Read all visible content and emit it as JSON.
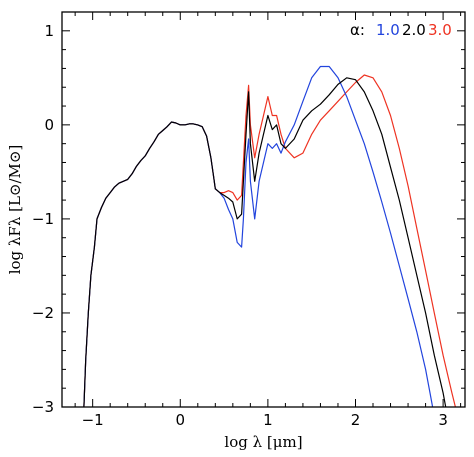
{
  "chart_data": {
    "type": "line",
    "xlabel": "log λ [μm]",
    "ylabel": "log λFλ [L⊙/M⊙]",
    "xlim": [
      -1.35,
      3.25
    ],
    "ylim": [
      -3,
      1.2
    ],
    "x_ticks": [
      -1,
      0,
      1,
      2,
      3
    ],
    "x_tick_labels": [
      "−1",
      "0",
      "1",
      "2",
      "3"
    ],
    "y_ticks": [
      -3,
      -2,
      -1,
      0,
      1
    ],
    "y_tick_labels": [
      "−3",
      "−2",
      "−1",
      "0",
      "1"
    ],
    "legend_title": "α:",
    "legend_position": "top-right",
    "series": [
      {
        "name": "1.0",
        "color": "#2244dd",
        "points": [
          [
            -1.1,
            -3.0
          ],
          [
            -1.08,
            -2.5
          ],
          [
            -1.05,
            -2.0
          ],
          [
            -1.02,
            -1.6
          ],
          [
            -0.98,
            -1.3
          ],
          [
            -0.95,
            -1.0
          ],
          [
            -0.9,
            -0.88
          ],
          [
            -0.85,
            -0.78
          ],
          [
            -0.8,
            -0.72
          ],
          [
            -0.75,
            -0.66
          ],
          [
            -0.7,
            -0.62
          ],
          [
            -0.6,
            -0.58
          ],
          [
            -0.55,
            -0.52
          ],
          [
            -0.5,
            -0.44
          ],
          [
            -0.45,
            -0.38
          ],
          [
            -0.4,
            -0.33
          ],
          [
            -0.35,
            -0.25
          ],
          [
            -0.3,
            -0.18
          ],
          [
            -0.25,
            -0.1
          ],
          [
            -0.2,
            -0.06
          ],
          [
            -0.15,
            -0.02
          ],
          [
            -0.1,
            0.03
          ],
          [
            -0.05,
            0.02
          ],
          [
            0.0,
            0.0
          ],
          [
            0.05,
            0.0
          ],
          [
            0.1,
            0.01
          ],
          [
            0.15,
            0.01
          ],
          [
            0.2,
            0.0
          ],
          [
            0.25,
            -0.02
          ],
          [
            0.3,
            -0.12
          ],
          [
            0.35,
            -0.35
          ],
          [
            0.38,
            -0.55
          ],
          [
            0.4,
            -0.68
          ],
          [
            0.45,
            -0.72
          ],
          [
            0.5,
            -0.78
          ],
          [
            0.55,
            -0.9
          ],
          [
            0.6,
            -1.0
          ],
          [
            0.65,
            -1.25
          ],
          [
            0.7,
            -1.3
          ],
          [
            0.72,
            -1.0
          ],
          [
            0.75,
            -0.4
          ],
          [
            0.78,
            -0.15
          ],
          [
            0.8,
            -0.6
          ],
          [
            0.85,
            -1.0
          ],
          [
            0.9,
            -0.6
          ],
          [
            0.95,
            -0.4
          ],
          [
            1.0,
            -0.2
          ],
          [
            1.05,
            -0.25
          ],
          [
            1.1,
            -0.2
          ],
          [
            1.15,
            -0.3
          ],
          [
            1.2,
            -0.18
          ],
          [
            1.3,
            0.0
          ],
          [
            1.4,
            0.25
          ],
          [
            1.5,
            0.5
          ],
          [
            1.6,
            0.62
          ],
          [
            1.7,
            0.62
          ],
          [
            1.8,
            0.5
          ],
          [
            1.9,
            0.3
          ],
          [
            2.0,
            0.05
          ],
          [
            2.1,
            -0.2
          ],
          [
            2.2,
            -0.5
          ],
          [
            2.3,
            -0.82
          ],
          [
            2.4,
            -1.15
          ],
          [
            2.5,
            -1.5
          ],
          [
            2.6,
            -1.85
          ],
          [
            2.7,
            -2.2
          ],
          [
            2.8,
            -2.6
          ],
          [
            2.85,
            -2.85
          ],
          [
            2.88,
            -3.0
          ]
        ]
      },
      {
        "name": "2.0",
        "color": "#000000",
        "points": [
          [
            -1.1,
            -3.0
          ],
          [
            -1.08,
            -2.5
          ],
          [
            -1.05,
            -2.0
          ],
          [
            -1.02,
            -1.6
          ],
          [
            -0.98,
            -1.3
          ],
          [
            -0.95,
            -1.0
          ],
          [
            -0.9,
            -0.88
          ],
          [
            -0.85,
            -0.78
          ],
          [
            -0.8,
            -0.72
          ],
          [
            -0.75,
            -0.66
          ],
          [
            -0.7,
            -0.62
          ],
          [
            -0.6,
            -0.58
          ],
          [
            -0.55,
            -0.52
          ],
          [
            -0.5,
            -0.44
          ],
          [
            -0.45,
            -0.38
          ],
          [
            -0.4,
            -0.33
          ],
          [
            -0.35,
            -0.25
          ],
          [
            -0.3,
            -0.18
          ],
          [
            -0.25,
            -0.1
          ],
          [
            -0.2,
            -0.06
          ],
          [
            -0.15,
            -0.02
          ],
          [
            -0.1,
            0.03
          ],
          [
            -0.05,
            0.02
          ],
          [
            0.0,
            0.0
          ],
          [
            0.05,
            0.0
          ],
          [
            0.1,
            0.01
          ],
          [
            0.15,
            0.01
          ],
          [
            0.2,
            0.0
          ],
          [
            0.25,
            -0.02
          ],
          [
            0.3,
            -0.12
          ],
          [
            0.35,
            -0.35
          ],
          [
            0.38,
            -0.55
          ],
          [
            0.4,
            -0.68
          ],
          [
            0.45,
            -0.72
          ],
          [
            0.5,
            -0.75
          ],
          [
            0.55,
            -0.78
          ],
          [
            0.6,
            -0.82
          ],
          [
            0.65,
            -1.0
          ],
          [
            0.7,
            -0.95
          ],
          [
            0.72,
            -0.6
          ],
          [
            0.75,
            -0.1
          ],
          [
            0.78,
            0.35
          ],
          [
            0.8,
            -0.2
          ],
          [
            0.85,
            -0.6
          ],
          [
            0.9,
            -0.3
          ],
          [
            0.95,
            -0.1
          ],
          [
            1.0,
            0.1
          ],
          [
            1.05,
            -0.05
          ],
          [
            1.1,
            0.0
          ],
          [
            1.15,
            -0.2
          ],
          [
            1.2,
            -0.25
          ],
          [
            1.3,
            -0.15
          ],
          [
            1.4,
            0.05
          ],
          [
            1.5,
            0.15
          ],
          [
            1.6,
            0.22
          ],
          [
            1.7,
            0.32
          ],
          [
            1.8,
            0.43
          ],
          [
            1.9,
            0.5
          ],
          [
            2.0,
            0.48
          ],
          [
            2.1,
            0.35
          ],
          [
            2.2,
            0.15
          ],
          [
            2.3,
            -0.1
          ],
          [
            2.4,
            -0.45
          ],
          [
            2.5,
            -0.8
          ],
          [
            2.6,
            -1.2
          ],
          [
            2.7,
            -1.6
          ],
          [
            2.8,
            -2.0
          ],
          [
            2.9,
            -2.45
          ],
          [
            3.0,
            -2.85
          ],
          [
            3.03,
            -3.0
          ]
        ]
      },
      {
        "name": "3.0",
        "color": "#ee3322",
        "points": [
          [
            -1.1,
            -3.0
          ],
          [
            -1.08,
            -2.5
          ],
          [
            -1.05,
            -2.0
          ],
          [
            -1.02,
            -1.6
          ],
          [
            -0.98,
            -1.3
          ],
          [
            -0.95,
            -1.0
          ],
          [
            -0.9,
            -0.88
          ],
          [
            -0.85,
            -0.78
          ],
          [
            -0.8,
            -0.72
          ],
          [
            -0.75,
            -0.66
          ],
          [
            -0.7,
            -0.62
          ],
          [
            -0.6,
            -0.58
          ],
          [
            -0.55,
            -0.52
          ],
          [
            -0.5,
            -0.44
          ],
          [
            -0.45,
            -0.38
          ],
          [
            -0.4,
            -0.33
          ],
          [
            -0.35,
            -0.25
          ],
          [
            -0.3,
            -0.18
          ],
          [
            -0.25,
            -0.1
          ],
          [
            -0.2,
            -0.06
          ],
          [
            -0.15,
            -0.02
          ],
          [
            -0.1,
            0.03
          ],
          [
            -0.05,
            0.02
          ],
          [
            0.0,
            0.0
          ],
          [
            0.05,
            0.0
          ],
          [
            0.1,
            0.01
          ],
          [
            0.15,
            0.01
          ],
          [
            0.2,
            0.0
          ],
          [
            0.25,
            -0.02
          ],
          [
            0.3,
            -0.12
          ],
          [
            0.35,
            -0.35
          ],
          [
            0.38,
            -0.55
          ],
          [
            0.4,
            -0.68
          ],
          [
            0.45,
            -0.72
          ],
          [
            0.5,
            -0.72
          ],
          [
            0.55,
            -0.7
          ],
          [
            0.6,
            -0.72
          ],
          [
            0.65,
            -0.8
          ],
          [
            0.7,
            -0.75
          ],
          [
            0.72,
            -0.4
          ],
          [
            0.75,
            0.1
          ],
          [
            0.78,
            0.42
          ],
          [
            0.8,
            0.0
          ],
          [
            0.85,
            -0.35
          ],
          [
            0.9,
            -0.1
          ],
          [
            0.95,
            0.1
          ],
          [
            1.0,
            0.3
          ],
          [
            1.05,
            0.1
          ],
          [
            1.1,
            0.1
          ],
          [
            1.15,
            -0.1
          ],
          [
            1.2,
            -0.25
          ],
          [
            1.3,
            -0.35
          ],
          [
            1.4,
            -0.3
          ],
          [
            1.5,
            -0.1
          ],
          [
            1.6,
            0.05
          ],
          [
            1.7,
            0.15
          ],
          [
            1.8,
            0.25
          ],
          [
            1.9,
            0.35
          ],
          [
            2.0,
            0.45
          ],
          [
            2.1,
            0.53
          ],
          [
            2.2,
            0.5
          ],
          [
            2.3,
            0.35
          ],
          [
            2.4,
            0.1
          ],
          [
            2.5,
            -0.25
          ],
          [
            2.6,
            -0.65
          ],
          [
            2.7,
            -1.1
          ],
          [
            2.8,
            -1.55
          ],
          [
            2.9,
            -2.0
          ],
          [
            3.0,
            -2.45
          ],
          [
            3.1,
            -2.85
          ],
          [
            3.14,
            -3.0
          ]
        ]
      }
    ]
  }
}
